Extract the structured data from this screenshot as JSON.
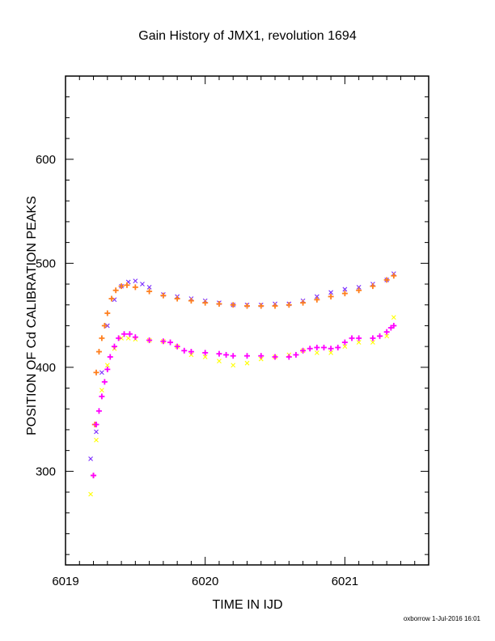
{
  "chart_data": {
    "type": "scatter",
    "title": "Gain History of JMX1, revolution 1694",
    "xlabel": "TIME IN IJD",
    "ylabel": "POSITION OF Cd CALIBRATION PEAKS",
    "xlim": [
      6019.0,
      6021.6
    ],
    "ylim": [
      210,
      680
    ],
    "x_ticks": [
      6019,
      6020,
      6021
    ],
    "y_ticks": [
      300,
      400,
      500,
      600
    ],
    "grid": false,
    "series": [
      {
        "color": "#7b2cff",
        "marker": "x",
        "values": [
          [
            6019.18,
            312
          ],
          [
            6019.22,
            338
          ],
          [
            6019.26,
            395
          ],
          [
            6019.3,
            440
          ],
          [
            6019.35,
            465
          ],
          [
            6019.4,
            478
          ],
          [
            6019.45,
            482
          ],
          [
            6019.5,
            483
          ],
          [
            6019.55,
            480
          ],
          [
            6019.6,
            477
          ],
          [
            6019.7,
            470
          ],
          [
            6019.8,
            468
          ],
          [
            6019.9,
            466
          ],
          [
            6020.0,
            464
          ],
          [
            6020.1,
            462
          ],
          [
            6020.2,
            460
          ],
          [
            6020.3,
            460
          ],
          [
            6020.4,
            460
          ],
          [
            6020.5,
            461
          ],
          [
            6020.6,
            461
          ],
          [
            6020.7,
            464
          ],
          [
            6020.8,
            468
          ],
          [
            6020.9,
            472
          ],
          [
            6021.0,
            475
          ],
          [
            6021.1,
            477
          ],
          [
            6021.2,
            480
          ],
          [
            6021.3,
            484
          ],
          [
            6021.35,
            490
          ]
        ]
      },
      {
        "color": "#ffff00",
        "marker": "x",
        "values": [
          [
            6019.18,
            278
          ],
          [
            6019.22,
            330
          ],
          [
            6019.26,
            378
          ],
          [
            6019.3,
            402
          ],
          [
            6019.35,
            418
          ],
          [
            6019.4,
            428
          ],
          [
            6019.45,
            428
          ],
          [
            6019.5,
            427
          ],
          [
            6019.6,
            426
          ],
          [
            6019.7,
            425
          ],
          [
            6019.8,
            420
          ],
          [
            6019.9,
            412
          ],
          [
            6020.0,
            410
          ],
          [
            6020.1,
            406
          ],
          [
            6020.2,
            402
          ],
          [
            6020.3,
            404
          ],
          [
            6020.4,
            408
          ],
          [
            6020.5,
            410
          ],
          [
            6020.6,
            412
          ],
          [
            6020.7,
            416
          ],
          [
            6020.8,
            414
          ],
          [
            6020.9,
            414
          ],
          [
            6021.0,
            420
          ],
          [
            6021.1,
            424
          ],
          [
            6021.2,
            424
          ],
          [
            6021.3,
            430
          ],
          [
            6021.35,
            448
          ]
        ]
      },
      {
        "color": "#ff7f1e",
        "marker": "+",
        "values": [
          [
            6019.2,
            296
          ],
          [
            6019.21,
            345
          ],
          [
            6019.22,
            395
          ],
          [
            6019.24,
            415
          ],
          [
            6019.26,
            428
          ],
          [
            6019.28,
            440
          ],
          [
            6019.3,
            452
          ],
          [
            6019.33,
            466
          ],
          [
            6019.36,
            474
          ],
          [
            6019.4,
            478
          ],
          [
            6019.44,
            479
          ],
          [
            6019.5,
            477
          ],
          [
            6019.6,
            473
          ],
          [
            6019.7,
            469
          ],
          [
            6019.8,
            466
          ],
          [
            6019.9,
            464
          ],
          [
            6020.0,
            462
          ],
          [
            6020.1,
            461
          ],
          [
            6020.2,
            460
          ],
          [
            6020.3,
            459
          ],
          [
            6020.4,
            459
          ],
          [
            6020.5,
            459
          ],
          [
            6020.6,
            460
          ],
          [
            6020.7,
            462
          ],
          [
            6020.8,
            465
          ],
          [
            6020.9,
            468
          ],
          [
            6021.0,
            471
          ],
          [
            6021.1,
            474
          ],
          [
            6021.2,
            478
          ],
          [
            6021.3,
            484
          ],
          [
            6021.35,
            488
          ]
        ]
      },
      {
        "color": "#ff00ff",
        "marker": "+",
        "values": [
          [
            6019.2,
            296
          ],
          [
            6019.22,
            345
          ],
          [
            6019.24,
            358
          ],
          [
            6019.26,
            372
          ],
          [
            6019.28,
            386
          ],
          [
            6019.3,
            398
          ],
          [
            6019.32,
            410
          ],
          [
            6019.35,
            420
          ],
          [
            6019.38,
            428
          ],
          [
            6019.42,
            432
          ],
          [
            6019.46,
            432
          ],
          [
            6019.5,
            429
          ],
          [
            6019.6,
            426
          ],
          [
            6019.7,
            425
          ],
          [
            6019.75,
            424
          ],
          [
            6019.8,
            420
          ],
          [
            6019.85,
            416
          ],
          [
            6019.9,
            415
          ],
          [
            6020.0,
            414
          ],
          [
            6020.1,
            413
          ],
          [
            6020.15,
            412
          ],
          [
            6020.2,
            411
          ],
          [
            6020.3,
            411
          ],
          [
            6020.4,
            411
          ],
          [
            6020.5,
            410
          ],
          [
            6020.6,
            410
          ],
          [
            6020.65,
            412
          ],
          [
            6020.7,
            416
          ],
          [
            6020.75,
            418
          ],
          [
            6020.8,
            419
          ],
          [
            6020.85,
            419
          ],
          [
            6020.9,
            418
          ],
          [
            6020.95,
            419
          ],
          [
            6021.0,
            424
          ],
          [
            6021.05,
            428
          ],
          [
            6021.1,
            428
          ],
          [
            6021.2,
            428
          ],
          [
            6021.25,
            430
          ],
          [
            6021.3,
            434
          ],
          [
            6021.33,
            438
          ],
          [
            6021.35,
            440
          ]
        ]
      }
    ]
  },
  "footer": "oxborrow 1-Jul-2016 16:01"
}
